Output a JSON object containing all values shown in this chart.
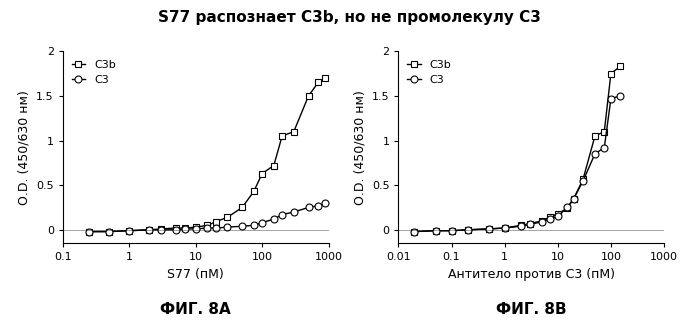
{
  "title": "S77 распознает C3b, но не промолекулу C3",
  "title_fontsize": 11,
  "panel_a": {
    "xlabel": "S77 (пМ)",
    "fig_label": "ФИГ. 8А",
    "xmin": 0.2,
    "xmax": 1000,
    "ymin": -0.15,
    "ymax": 2.0,
    "C3b_x": [
      0.25,
      0.5,
      1.0,
      2.0,
      3.0,
      5.0,
      7.0,
      10.0,
      15.0,
      20.0,
      30.0,
      50.0,
      75.0,
      100.0,
      150.0,
      200.0,
      300.0,
      500.0,
      700.0,
      900.0
    ],
    "C3b_y": [
      -0.02,
      -0.02,
      -0.01,
      0.0,
      0.01,
      0.02,
      0.02,
      0.03,
      0.05,
      0.09,
      0.14,
      0.25,
      0.43,
      0.63,
      0.72,
      1.05,
      1.1,
      1.5,
      1.65,
      1.7
    ],
    "C3_x": [
      0.25,
      0.5,
      1.0,
      2.0,
      3.0,
      5.0,
      7.0,
      10.0,
      15.0,
      20.0,
      30.0,
      50.0,
      75.0,
      100.0,
      150.0,
      200.0,
      300.0,
      500.0,
      700.0,
      900.0
    ],
    "C3_y": [
      -0.02,
      -0.02,
      -0.01,
      0.0,
      0.0,
      0.0,
      0.01,
      0.01,
      0.02,
      0.02,
      0.03,
      0.04,
      0.05,
      0.08,
      0.12,
      0.17,
      0.2,
      0.25,
      0.27,
      0.3
    ],
    "xtick_locs": [
      0.1,
      1,
      10,
      100,
      1000
    ],
    "xtick_labels": [
      "0.1",
      "1",
      "10",
      "100",
      "1000"
    ]
  },
  "panel_b": {
    "xlabel": "Антитело против С3 (пМ)",
    "fig_label": "ФИГ. 8В",
    "xmin": 0.01,
    "xmax": 1000,
    "ymin": -0.15,
    "ymax": 2.0,
    "C3b_x": [
      0.02,
      0.05,
      0.1,
      0.2,
      0.5,
      1.0,
      2.0,
      3.0,
      5.0,
      7.0,
      10.0,
      15.0,
      20.0,
      30.0,
      50.0,
      75.0,
      100.0,
      150.0
    ],
    "C3b_y": [
      -0.02,
      -0.01,
      -0.01,
      0.0,
      0.01,
      0.02,
      0.05,
      0.07,
      0.1,
      0.14,
      0.18,
      0.24,
      0.35,
      0.57,
      1.05,
      1.1,
      1.75,
      1.83
    ],
    "C3_x": [
      0.02,
      0.05,
      0.1,
      0.2,
      0.5,
      1.0,
      2.0,
      3.0,
      5.0,
      7.0,
      10.0,
      15.0,
      20.0,
      30.0,
      50.0,
      75.0,
      100.0,
      150.0
    ],
    "C3_y": [
      -0.02,
      -0.01,
      -0.01,
      0.0,
      0.01,
      0.02,
      0.04,
      0.06,
      0.09,
      0.12,
      0.15,
      0.25,
      0.35,
      0.55,
      0.85,
      0.92,
      1.47,
      1.5
    ],
    "xtick_locs": [
      0.01,
      0.1,
      1,
      10,
      100,
      1000
    ],
    "xtick_labels": [
      "0.01",
      "0.1",
      "1",
      "10",
      "100",
      "1000"
    ]
  },
  "ylabel": "О.D. (450/630 нм)",
  "ytick_locs": [
    0.0,
    0.5,
    1.0,
    1.5,
    2.0
  ],
  "ytick_labels": [
    "0",
    "0.5",
    "1",
    "1.5",
    "2"
  ],
  "legend_C3b": "C3b",
  "legend_C3": "C3",
  "line_color": "#000000",
  "background_color": "#ffffff",
  "marker_C3b": "s",
  "marker_C3": "o",
  "markersize": 5,
  "linewidth": 1.0
}
